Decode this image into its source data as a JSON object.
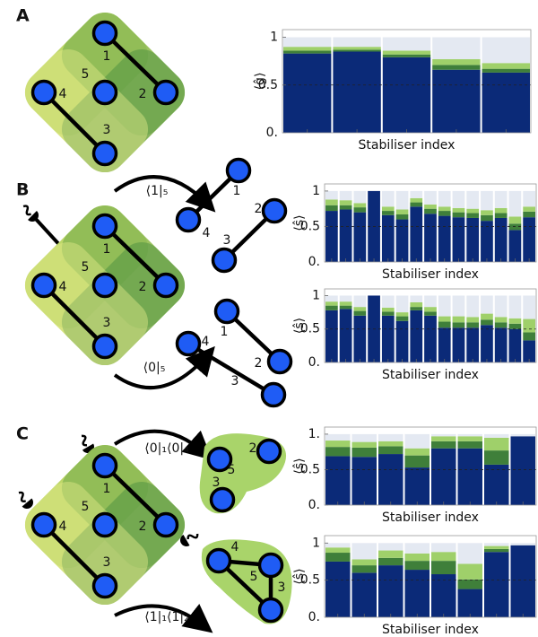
{
  "chart_data": [
    {
      "type": "bar",
      "stacked": true,
      "ylabel": "⟨ĝ⟩",
      "xlabel": "Stabiliser index",
      "categories": [
        null,
        null,
        null,
        null,
        null
      ],
      "series": [
        {
          "color": "#0b2a78",
          "values": [
            0.83,
            0.85,
            0.79,
            0.66,
            0.63
          ]
        },
        {
          "color": "#3f7f3a",
          "values": [
            0.03,
            0.02,
            0.03,
            0.05,
            0.04
          ]
        },
        {
          "color": "#9fd06a",
          "values": [
            0.04,
            0.03,
            0.04,
            0.06,
            0.06
          ]
        },
        {
          "color": "#e4e9f2",
          "values": [
            0.1,
            0.1,
            0.14,
            0.23,
            0.27
          ]
        }
      ],
      "ylim": [
        0,
        1.08
      ],
      "yticks": [
        {
          "value": 0,
          "label": "0."
        },
        0.5,
        1
      ],
      "reference_line": 0.5
    },
    {
      "type": "bar",
      "stacked": true,
      "ylabel": "⟨ŝ⟩",
      "xlabel": "Stabiliser index",
      "categories": [
        null,
        null,
        null,
        null,
        null,
        null,
        null,
        null,
        null,
        null,
        null,
        null,
        null,
        null,
        null
      ],
      "series": [
        {
          "color": "#0b2a78",
          "values": [
            0.72,
            0.74,
            0.7,
            1.0,
            0.66,
            0.6,
            0.78,
            0.68,
            0.65,
            0.63,
            0.62,
            0.58,
            0.62,
            0.45,
            0.63
          ]
        },
        {
          "color": "#3f7f3a",
          "values": [
            0.08,
            0.06,
            0.07,
            0,
            0.06,
            0.07,
            0.06,
            0.07,
            0.07,
            0.07,
            0.07,
            0.08,
            0.07,
            0.09,
            0.08
          ]
        },
        {
          "color": "#9fd06a",
          "values": [
            0.08,
            0.07,
            0.06,
            0,
            0.06,
            0.07,
            0.06,
            0.06,
            0.06,
            0.06,
            0.06,
            0.07,
            0.07,
            0.1,
            0.07
          ]
        },
        {
          "color": "#e4e9f2",
          "values": [
            0.12,
            0.13,
            0.17,
            0,
            0.22,
            0.26,
            0.1,
            0.19,
            0.22,
            0.24,
            0.25,
            0.27,
            0.24,
            0.36,
            0.22
          ]
        }
      ],
      "ylim": [
        0,
        1.1
      ],
      "yticks": [
        {
          "value": 0,
          "label": "0."
        },
        0.5,
        1
      ],
      "reference_line": 0.5
    },
    {
      "type": "bar",
      "stacked": true,
      "ylabel": "⟨ŝ⟩",
      "xlabel": "Stabiliser index",
      "categories": [
        null,
        null,
        null,
        null,
        null,
        null,
        null,
        null,
        null,
        null,
        null,
        null,
        null,
        null,
        null
      ],
      "series": [
        {
          "color": "#0b2a78",
          "values": [
            0.78,
            0.8,
            0.7,
            1.0,
            0.7,
            0.62,
            0.78,
            0.7,
            0.52,
            0.52,
            0.52,
            0.56,
            0.52,
            0.5,
            0.33
          ]
        },
        {
          "color": "#3f7f3a",
          "values": [
            0.07,
            0.05,
            0.07,
            0,
            0.06,
            0.07,
            0.05,
            0.06,
            0.09,
            0.08,
            0.08,
            0.08,
            0.08,
            0.08,
            0.12
          ]
        },
        {
          "color": "#9fd06a",
          "values": [
            0.06,
            0.06,
            0.06,
            0,
            0.06,
            0.06,
            0.07,
            0.07,
            0.08,
            0.09,
            0.08,
            0.09,
            0.08,
            0.08,
            0.2
          ]
        },
        {
          "color": "#e4e9f2",
          "values": [
            0.09,
            0.09,
            0.17,
            0,
            0.18,
            0.25,
            0.1,
            0.17,
            0.31,
            0.31,
            0.32,
            0.27,
            0.32,
            0.34,
            0.35
          ]
        }
      ],
      "ylim": [
        0,
        1.1
      ],
      "yticks": [
        {
          "value": 0,
          "label": "0."
        },
        0.5,
        1
      ],
      "reference_line": 0.5
    },
    {
      "type": "bar",
      "stacked": true,
      "ylabel": "⟨ŝ⟩",
      "xlabel": "Stabiliser index",
      "categories": [
        null,
        null,
        null,
        null,
        null,
        null,
        null,
        null
      ],
      "series": [
        {
          "color": "#0b2a78",
          "values": [
            0.69,
            0.68,
            0.72,
            0.53,
            0.8,
            0.8,
            0.57,
            0.97
          ]
        },
        {
          "color": "#3f7f3a",
          "values": [
            0.13,
            0.13,
            0.11,
            0.17,
            0.1,
            0.1,
            0.2,
            0
          ]
        },
        {
          "color": "#9fd06a",
          "values": [
            0.09,
            0.08,
            0.07,
            0.1,
            0.07,
            0.07,
            0.18,
            0
          ]
        },
        {
          "color": "#e4e9f2",
          "values": [
            0.09,
            0.11,
            0.1,
            0.2,
            0.03,
            0.03,
            0.05,
            0.03
          ]
        }
      ],
      "ylim": [
        0,
        1.1
      ],
      "yticks": [
        {
          "value": 0,
          "label": "0."
        },
        0.5,
        {
          "value": 1,
          "label": "1."
        }
      ],
      "reference_line": 0.5
    },
    {
      "type": "bar",
      "stacked": true,
      "ylabel": "⟨ŝ⟩",
      "xlabel": "Stabiliser index",
      "categories": [
        null,
        null,
        null,
        null,
        null,
        null,
        null,
        null
      ],
      "series": [
        {
          "color": "#0b2a78",
          "values": [
            0.75,
            0.6,
            0.7,
            0.64,
            0.58,
            0.38,
            0.88,
            0.97
          ]
        },
        {
          "color": "#3f7f3a",
          "values": [
            0.12,
            0.1,
            0.1,
            0.12,
            0.18,
            0.13,
            0.04,
            0
          ]
        },
        {
          "color": "#9fd06a",
          "values": [
            0.07,
            0.08,
            0.1,
            0.1,
            0.12,
            0.21,
            0.04,
            0
          ]
        },
        {
          "color": "#e4e9f2",
          "values": [
            0.06,
            0.22,
            0.1,
            0.14,
            0.12,
            0.28,
            0.04,
            0.03
          ]
        }
      ],
      "ylim": [
        0,
        1.1
      ],
      "yticks": [
        {
          "value": 0,
          "label": "0."
        },
        0.5,
        1
      ],
      "reference_line": 0.5
    }
  ],
  "diagrams": [
    {
      "panel": "A",
      "nodes": [
        "1",
        "2",
        "3",
        "4",
        "5"
      ]
    },
    {
      "panel": "B",
      "nodes": [
        "1",
        "2",
        "3",
        "4",
        "5"
      ],
      "projections": [
        {
          "operator": "⟨1|₅",
          "nodes": [
            "1",
            "2",
            "3",
            "4"
          ]
        },
        {
          "operator": "⟨0|₅",
          "nodes": [
            "1",
            "2",
            "3",
            "4"
          ]
        }
      ]
    },
    {
      "panel": "C",
      "nodes": [
        "1",
        "2",
        "3",
        "4",
        "5"
      ],
      "projections": [
        {
          "operator": "⟨0|₁⟨0|₄",
          "nodes": [
            "2",
            "5",
            "3"
          ]
        },
        {
          "operator": "⟨1|₁⟨1|₂",
          "nodes": [
            "4",
            "5",
            "3"
          ]
        }
      ]
    }
  ]
}
